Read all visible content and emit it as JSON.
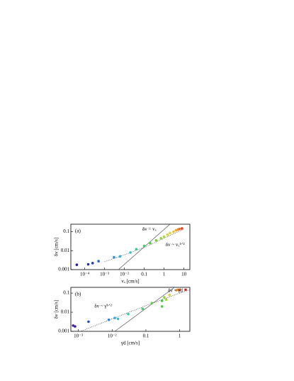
{
  "chart_data": [
    {
      "type": "scatter",
      "panel": "(a)",
      "x_label": "vₓ [cm/s]",
      "y_label": "δv [cm/s]",
      "log_x": true,
      "log_y": true,
      "xlim": [
        2e-05,
        20
      ],
      "ylim": [
        0.001,
        0.25
      ],
      "xticks": [
        {
          "value": 0.0001,
          "label": "10⁻⁴"
        },
        {
          "value": 0.001,
          "label": "10⁻³"
        },
        {
          "value": 0.01,
          "label": "10⁻²"
        },
        0.1,
        1,
        10
      ],
      "yticks": [
        0.001,
        0.01,
        0.1
      ],
      "x": [
        4e-05,
        0.00015,
        0.00025,
        0.0005,
        0.003,
        0.006,
        0.02,
        0.04,
        0.1,
        0.2,
        0.4,
        0.7,
        1,
        1.5,
        2,
        3,
        4,
        5,
        6,
        8
      ],
      "values": [
        0.0018,
        0.0019,
        0.0022,
        0.0028,
        0.0045,
        0.005,
        0.008,
        0.012,
        0.018,
        0.025,
        0.035,
        0.045,
        0.055,
        0.07,
        0.085,
        0.1,
        0.12,
        0.13,
        0.14,
        0.15
      ],
      "colors": [
        "#1a1a9c",
        "#1f2fb0",
        "#2240c0",
        "#2a60d0",
        "#2a90e0",
        "#30b0e8",
        "#30c8d0",
        "#30d0a0",
        "#40d070",
        "#50d040",
        "#70d030",
        "#90d830",
        "#b0d830",
        "#d0d830",
        "#e8d030",
        "#f0c030",
        "#f0a830",
        "#f09030",
        "#e87030",
        "#e04020"
      ],
      "curves": [
        {
          "style": "solid",
          "x": [
            0.005,
            2
          ],
          "y": [
            0.001,
            0.25
          ]
        },
        {
          "style": "dotted",
          "x": [
            0.001,
            0.01,
            0.1,
            1,
            10
          ],
          "y": [
            0.0026,
            0.006,
            0.015,
            0.045,
            0.14
          ]
        }
      ],
      "annotations": [
        {
          "text": "δv = vₓ",
          "x": 0.08,
          "y": 0.13
        },
        {
          "text": "δv ~ vₓ¹ᐟ²",
          "x": 1.2,
          "y": 0.02
        }
      ]
    },
    {
      "type": "scatter",
      "panel": "(b)",
      "x_label": "γ̇d [cm/s]",
      "y_label": "δv [cm/s]",
      "log_x": true,
      "log_y": true,
      "xlim": [
        0.0006,
        2
      ],
      "ylim": [
        0.001,
        0.2
      ],
      "xticks": [
        {
          "value": 0.001,
          "label": "10⁻³"
        },
        {
          "value": 0.01,
          "label": "10⁻²"
        },
        0.1,
        1
      ],
      "yticks": [
        0.001,
        0.01,
        0.1
      ],
      "x": [
        0.0007,
        0.0008,
        0.002,
        0.008,
        0.012,
        0.015,
        0.03,
        0.08,
        0.15,
        0.3,
        0.3,
        0.35,
        0.4,
        0.5,
        0.8,
        0.9,
        1,
        1.5
      ],
      "values": [
        0.002,
        0.0018,
        0.0032,
        0.004,
        0.005,
        0.0045,
        0.008,
        0.015,
        0.03,
        0.04,
        0.02,
        0.06,
        0.045,
        0.08,
        0.14,
        0.15,
        0.15,
        0.15
      ],
      "colors": [
        "#5a1a9c",
        "#3020b0",
        "#2050c8",
        "#2a80e0",
        "#30a8e8",
        "#30c0e0",
        "#30d0b0",
        "#40d070",
        "#60d040",
        "#40c840",
        "#50d040",
        "#90d830",
        "#b0d830",
        "#e0d030",
        "#f0a030",
        "#f08030",
        "#f06030",
        "#d02020"
      ],
      "curves": [
        {
          "style": "solid",
          "x": [
            0.012,
            0.7
          ],
          "y": [
            0.001,
            0.2
          ]
        },
        {
          "style": "dotted",
          "x": [
            0.001,
            0.01,
            0.1,
            1,
            2
          ],
          "y": [
            0.0009,
            0.0045,
            0.022,
            0.1,
            0.15
          ]
        }
      ],
      "annotations": [
        {
          "text": "δv = γ̇d",
          "x": 0.45,
          "y": 0.13
        },
        {
          "text": "δv ~ γ̇¹ᐟ²",
          "x": 0.003,
          "y": 0.02
        }
      ]
    }
  ]
}
